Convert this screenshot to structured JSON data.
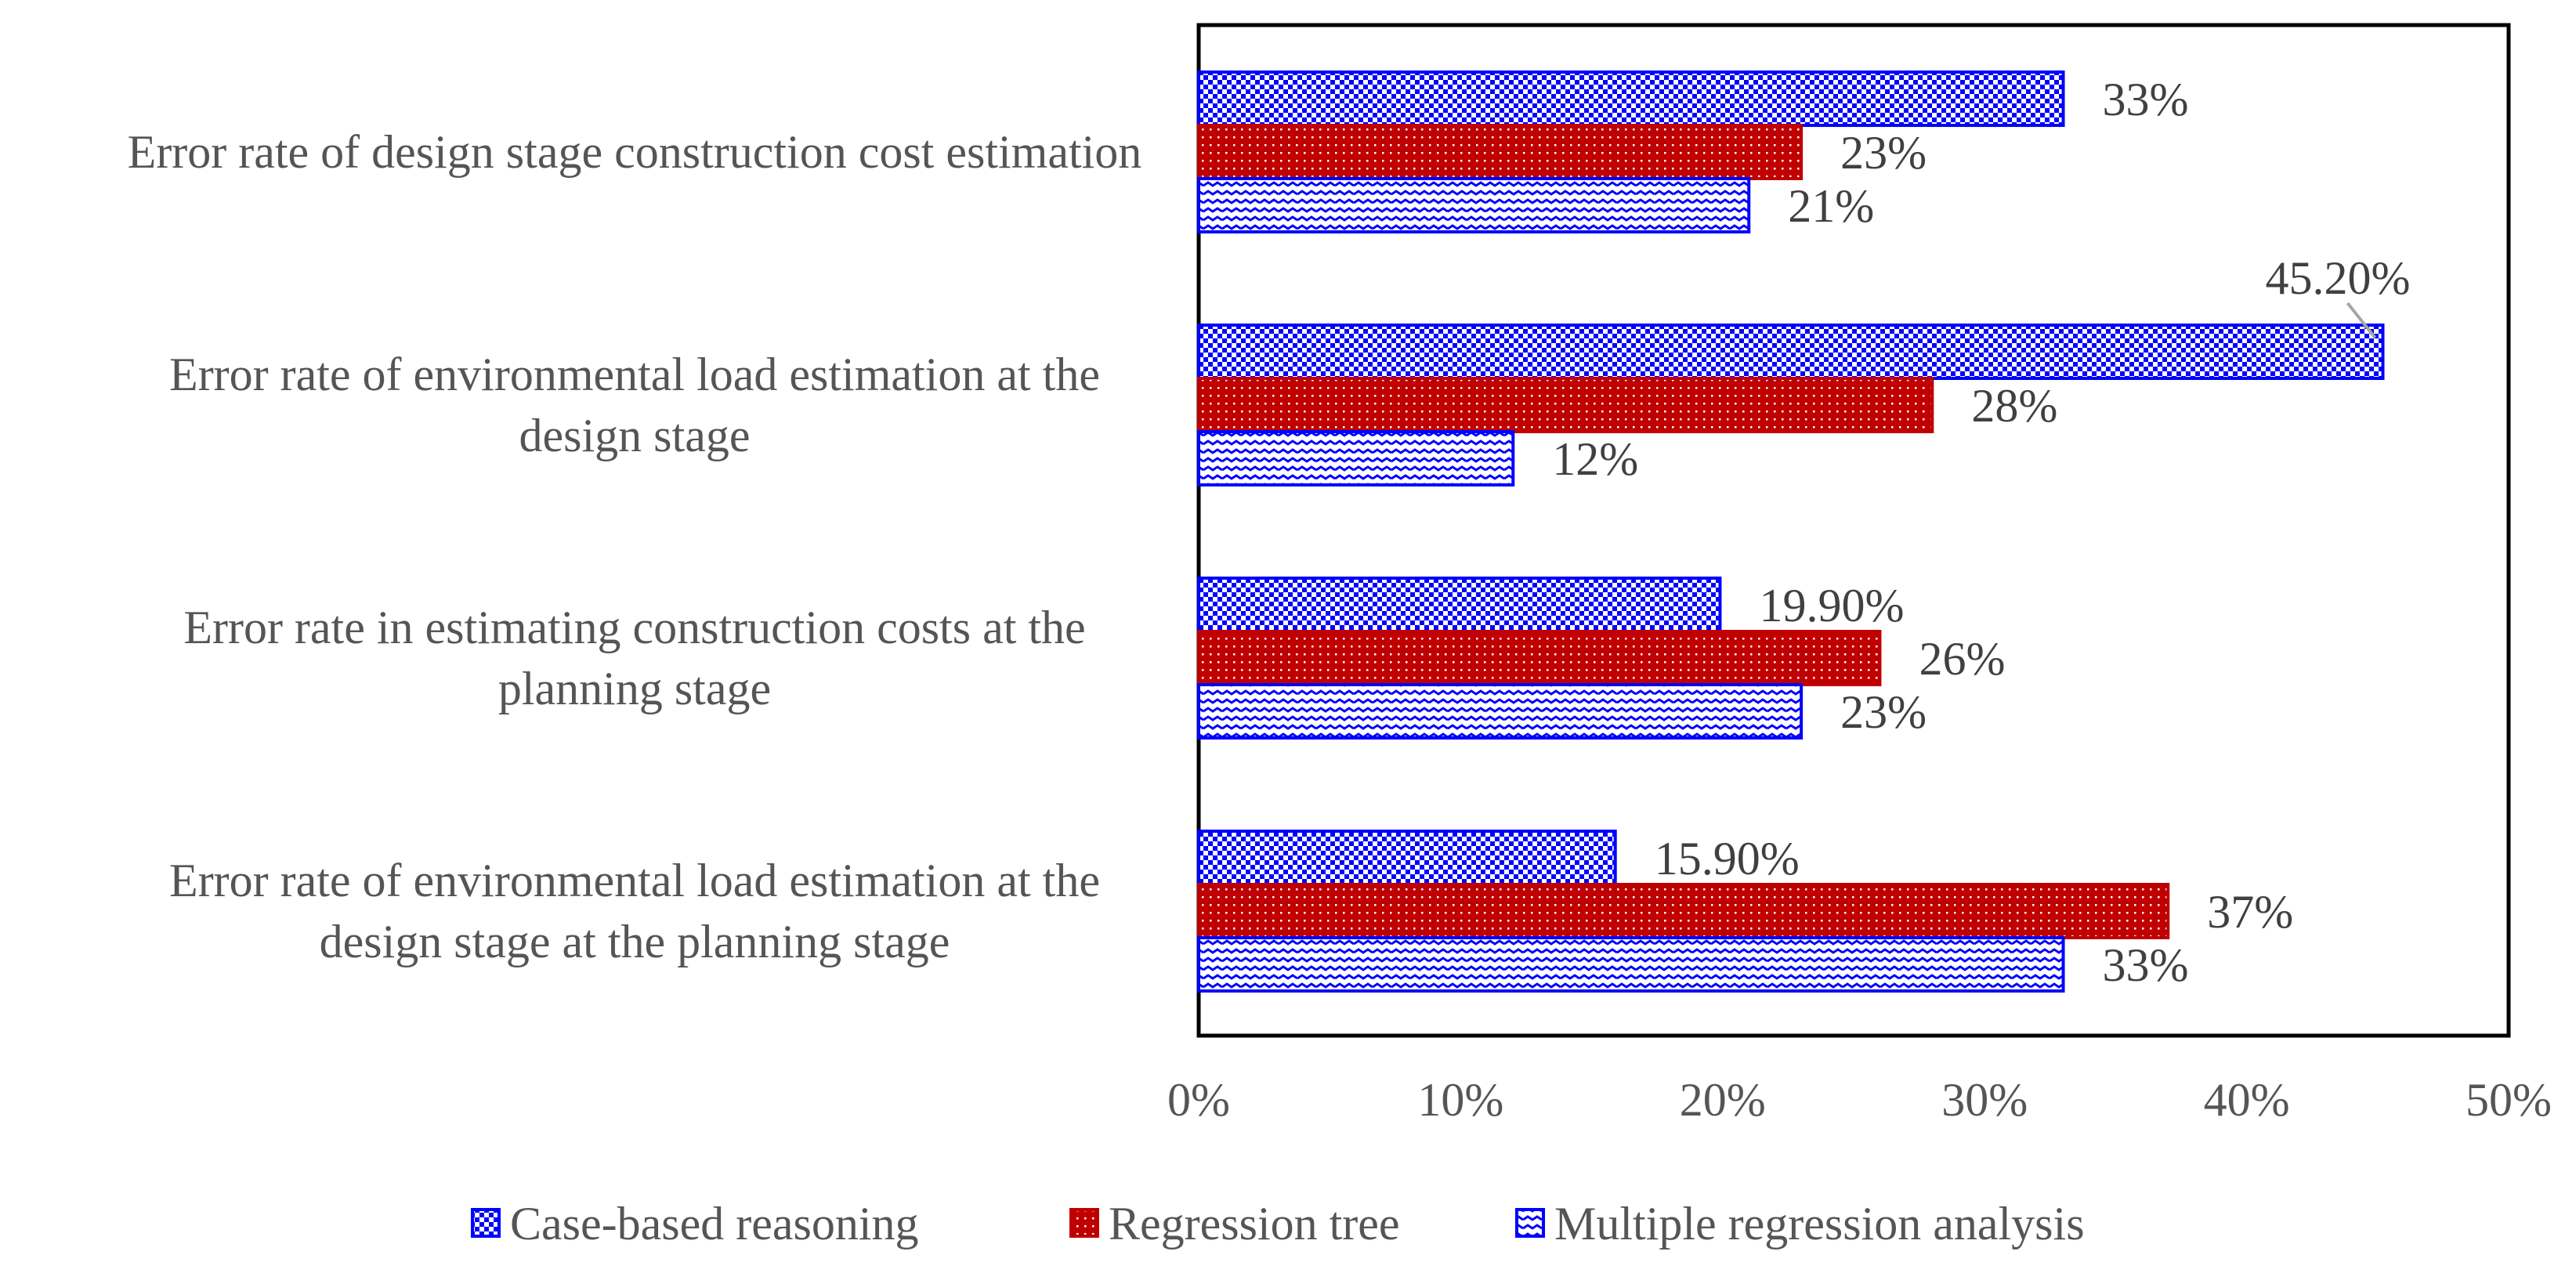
{
  "chart_data": {
    "type": "bar",
    "orientation": "horizontal",
    "categories": [
      "Error rate of design stage construction cost estimation",
      "Error rate of environmental load estimation at the design stage",
      "Error rate in estimating construction costs at the planning stage",
      "Error rate of environmental load estimation at the design stage at the planning stage"
    ],
    "category_lines": [
      [
        "Error rate of design stage construction cost estimation"
      ],
      [
        "Error rate of environmental load estimation at the",
        "design stage"
      ],
      [
        "Error rate in estimating construction costs at the",
        "planning stage"
      ],
      [
        "Error rate of environmental load estimation at the",
        "design stage at the planning stage"
      ]
    ],
    "series": [
      {
        "name": "Case-based reasoning",
        "values": [
          33,
          45.2,
          19.9,
          15.9
        ],
        "labels": [
          "33%",
          "45.20%",
          "19.90%",
          "15.90%"
        ],
        "color": "#0000ff",
        "pattern": "checker"
      },
      {
        "name": "Regression tree",
        "values": [
          23,
          28,
          26,
          37
        ],
        "labels": [
          "23%",
          "28%",
          "26%",
          "37%"
        ],
        "color": "#c00000",
        "pattern": "dots"
      },
      {
        "name": "Multiple regression analysis",
        "values": [
          21,
          12,
          23,
          33
        ],
        "labels": [
          "21%",
          "12%",
          "23%",
          "33%"
        ],
        "color": "#0000ff",
        "pattern": "zigzag"
      }
    ],
    "xlim": [
      0,
      50
    ],
    "xticks": [
      0,
      10,
      20,
      30,
      40,
      50
    ],
    "xtick_labels": [
      "0%",
      "10%",
      "20%",
      "30%",
      "40%",
      "50%"
    ],
    "title": "",
    "xlabel": "",
    "ylabel": "",
    "grid": false,
    "legend_position": "bottom"
  }
}
